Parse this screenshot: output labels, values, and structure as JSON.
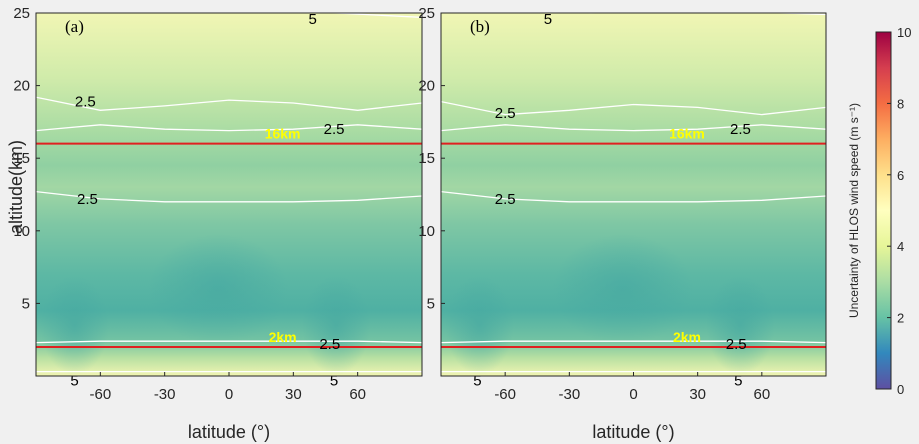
{
  "chart_data": {
    "type": "contour",
    "panels": [
      {
        "label": "(a)",
        "contours": [
          {
            "value": 5,
            "label": "5"
          },
          {
            "value": 2.5,
            "label": "2.5"
          },
          {
            "value": 2.5,
            "label": "2.5"
          },
          {
            "value": 2.5,
            "label": "2.5"
          },
          {
            "value": 2.5,
            "label": "2.5"
          },
          {
            "value": 5,
            "label": "5"
          },
          {
            "value": 5,
            "label": "5"
          }
        ],
        "annotations": [
          {
            "text": "16km",
            "altitude": 16
          },
          {
            "text": "2km",
            "altitude": 2
          }
        ]
      },
      {
        "label": "(b)",
        "contours": [
          {
            "value": 5,
            "label": "5"
          },
          {
            "value": 2.5,
            "label": "2.5"
          },
          {
            "value": 2.5,
            "label": "2.5"
          },
          {
            "value": 2.5,
            "label": "2.5"
          },
          {
            "value": 2.5,
            "label": "2.5"
          },
          {
            "value": 5,
            "label": "5"
          },
          {
            "value": 5,
            "label": "5"
          }
        ],
        "annotations": [
          {
            "text": "16km",
            "altitude": 16
          },
          {
            "text": "2km",
            "altitude": 2
          }
        ]
      }
    ],
    "reference_lines_km": [
      16,
      2
    ],
    "xlabel": "latitude (°)",
    "ylabel": "altitude(km)",
    "xlim": [
      -90,
      90
    ],
    "ylim": [
      0,
      25
    ],
    "xticks": [
      -60,
      -30,
      0,
      30,
      60
    ],
    "yticks": [
      5,
      10,
      15,
      20,
      25
    ],
    "colorbar": {
      "label": "Uncertainty of HLOS wind speed (m s⁻¹)",
      "range": [
        0,
        10
      ],
      "ticks": [
        0,
        2,
        4,
        6,
        8,
        10
      ]
    },
    "colors": {
      "ref_line": "#e02020",
      "annotation": "#ffff00",
      "contour": "#ffffff"
    }
  }
}
